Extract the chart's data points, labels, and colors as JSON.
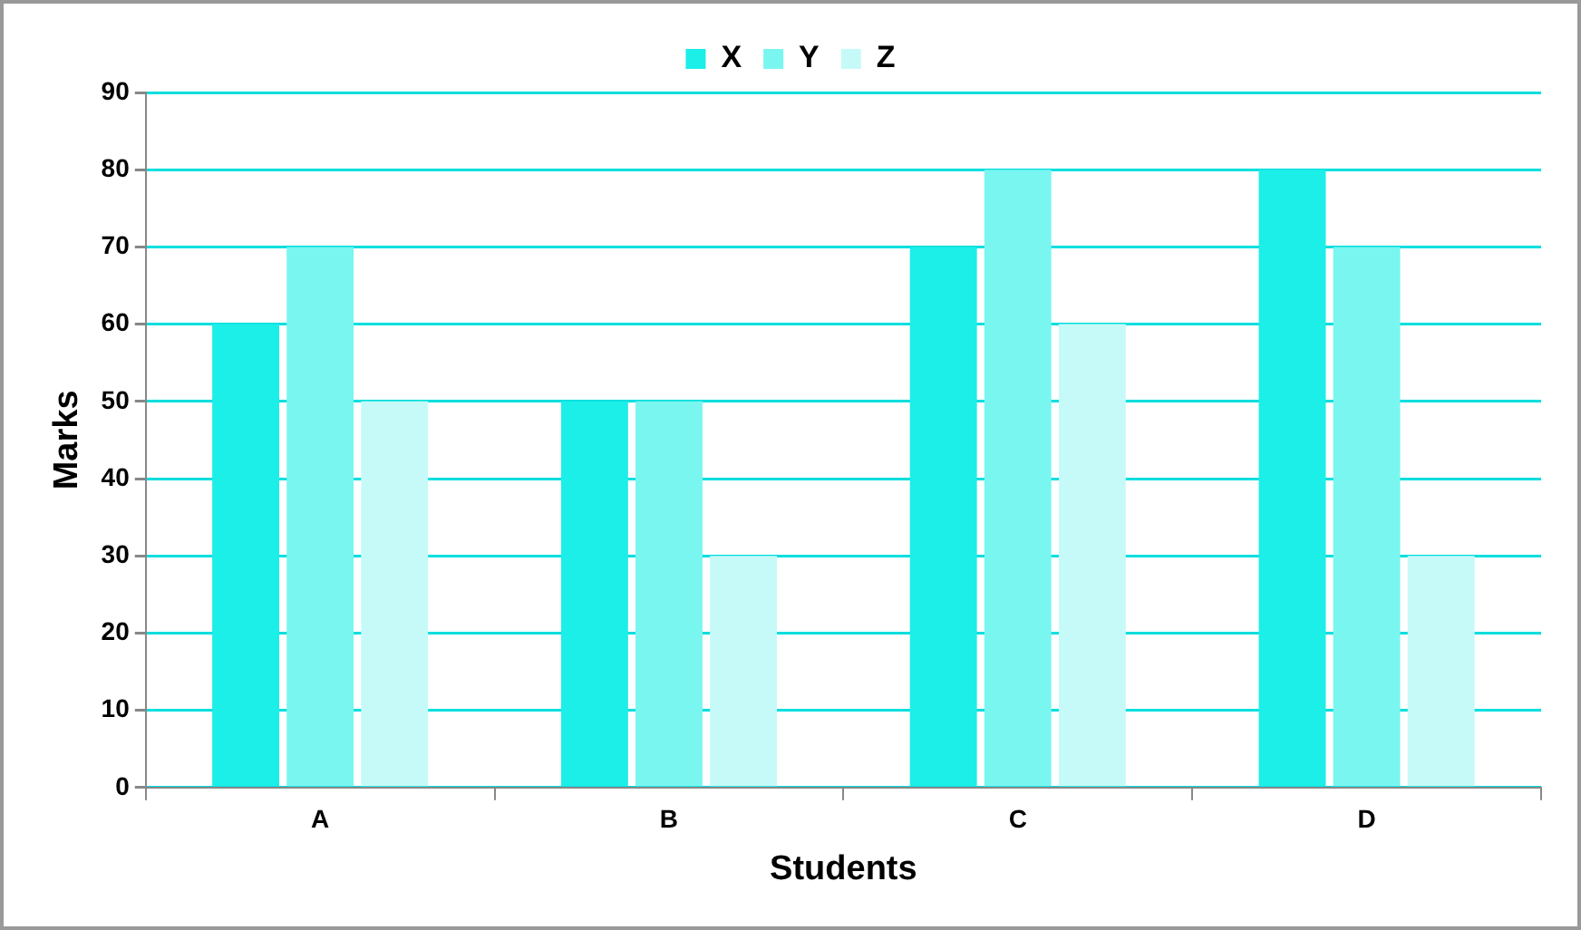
{
  "chart_data": {
    "type": "bar",
    "xlabel": "Students",
    "ylabel": "Marks",
    "categories": [
      "A",
      "B",
      "C",
      "D"
    ],
    "series": [
      {
        "name": "X",
        "color": "#1ceee8",
        "values": [
          60,
          50,
          70,
          80
        ]
      },
      {
        "name": "Y",
        "color": "#7af6f0",
        "values": [
          70,
          50,
          80,
          70
        ]
      },
      {
        "name": "Z",
        "color": "#c6faf8",
        "values": [
          50,
          30,
          60,
          30
        ]
      }
    ],
    "ylim": [
      0,
      90
    ],
    "yticks": [
      0,
      10,
      20,
      30,
      40,
      50,
      60,
      70,
      80,
      90
    ],
    "grid": "y",
    "legend": "top"
  }
}
